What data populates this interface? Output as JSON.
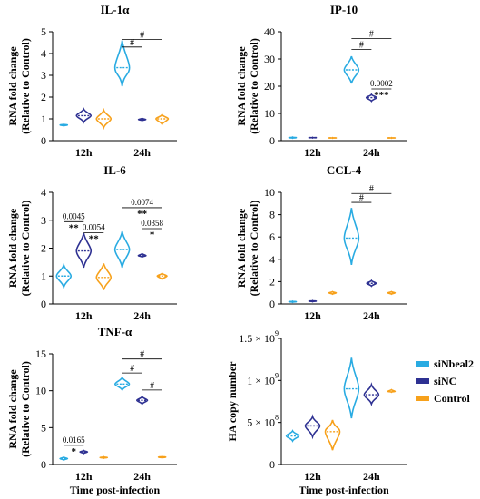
{
  "colors": {
    "siNbeal2": "#29abe2",
    "siNC": "#2e3192",
    "Control": "#f7a11b"
  },
  "legend": [
    {
      "name": "siNbeal2",
      "color": "#29abe2"
    },
    {
      "name": "siNC",
      "color": "#2e3192"
    },
    {
      "name": "Control",
      "color": "#f7a11b"
    }
  ],
  "chart_data": [
    {
      "type": "violin",
      "title": "IL-1α",
      "ylabel": "RNA fold change",
      "ylabel2": "(Relative to Control)",
      "xlabel": "",
      "ylim": [
        0,
        5
      ],
      "yticks": [
        "0",
        "1",
        "2",
        "3",
        "4",
        "5"
      ],
      "ytick_values": [
        0,
        1,
        2,
        3,
        4,
        5
      ],
      "categories": [
        "12h",
        "24h"
      ],
      "series": [
        {
          "name": "siNbeal2",
          "values": [
            [
              0.68,
              0.72,
              0.75
            ],
            [
              2.5,
              3.35,
              4.6
            ]
          ]
        },
        {
          "name": "siNC",
          "values": [
            [
              0.85,
              1.15,
              1.45
            ],
            [
              0.92,
              0.97,
              1.02
            ]
          ]
        },
        {
          "name": "Control",
          "values": [
            [
              0.6,
              1.0,
              1.4
            ],
            [
              0.75,
              1.0,
              1.2
            ]
          ]
        }
      ],
      "annotations": [
        {
          "text": "#",
          "group": 1,
          "from": 0,
          "to": 1,
          "y": 4.3
        },
        {
          "text": "#",
          "group": 1,
          "from": 0,
          "to": 2,
          "y": 4.65
        }
      ]
    },
    {
      "type": "violin",
      "title": "IP-10",
      "ylabel": "RNA fold change",
      "ylabel2": "(Relative to Control)",
      "xlabel": "",
      "ylim": [
        0,
        40
      ],
      "yticks": [
        "0",
        "10",
        "20",
        "30",
        "40"
      ],
      "ytick_values": [
        0,
        10,
        20,
        30,
        40
      ],
      "categories": [
        "12h",
        "24h"
      ],
      "series": [
        {
          "name": "siNbeal2",
          "values": [
            [
              0.9,
              1.1,
              1.3
            ],
            [
              21,
              26,
              31
            ]
          ]
        },
        {
          "name": "siNC",
          "values": [
            [
              1.0,
              1.1,
              1.2
            ],
            [
              14.5,
              15.8,
              17
            ]
          ]
        },
        {
          "name": "Control",
          "values": [
            [
              0.9,
              1.0,
              1.1
            ],
            [
              0.9,
              1.0,
              1.1
            ]
          ]
        }
      ],
      "annotations": [
        {
          "text": "#",
          "group": 1,
          "from": 0,
          "to": 1,
          "y": 33.5
        },
        {
          "text": "#",
          "group": 1,
          "from": 0,
          "to": 2,
          "y": 37.5
        },
        {
          "text": "***",
          "label": "0.0002",
          "group": 1,
          "from": 1,
          "to": 2,
          "y": 19
        }
      ]
    },
    {
      "type": "violin",
      "title": "IL-6",
      "ylabel": "RNA fold change",
      "ylabel2": "(Relative to Control)",
      "xlabel": "",
      "ylim": [
        0,
        4
      ],
      "yticks": [
        "0",
        "1",
        "2",
        "3",
        "4"
      ],
      "ytick_values": [
        0,
        1,
        2,
        3,
        4
      ],
      "categories": [
        "12h",
        "24h"
      ],
      "series": [
        {
          "name": "siNbeal2",
          "values": [
            [
              0.6,
              1.0,
              1.4
            ],
            [
              1.3,
              1.95,
              2.6
            ]
          ]
        },
        {
          "name": "siNC",
          "values": [
            [
              1.3,
              1.9,
              2.55
            ],
            [
              1.68,
              1.73,
              1.8
            ]
          ]
        },
        {
          "name": "Control",
          "values": [
            [
              0.5,
              0.95,
              1.45
            ],
            [
              0.88,
              1.0,
              1.1
            ]
          ]
        }
      ],
      "annotations": [
        {
          "text": "**",
          "label": "0.0045",
          "group": 0,
          "from": 0,
          "to": 1,
          "y": 2.95
        },
        {
          "text": "**",
          "label": "0.0054",
          "group": 0,
          "from": 1,
          "to": 2,
          "y": 2.55
        },
        {
          "text": "**",
          "label": "0.0074",
          "group": 1,
          "from": 0,
          "to": 2,
          "y": 3.45
        },
        {
          "text": "*",
          "label": "0.0358",
          "group": 1,
          "from": 1,
          "to": 2,
          "y": 2.7
        }
      ]
    },
    {
      "type": "violin",
      "title": "CCL-4",
      "ylabel": "RNA fold change",
      "ylabel2": "(Relative to Control)",
      "xlabel": "",
      "ylim": [
        0,
        10
      ],
      "yticks": [
        "0",
        "2",
        "4",
        "6",
        "8",
        "10"
      ],
      "ytick_values": [
        0,
        2,
        4,
        6,
        8,
        10
      ],
      "categories": [
        "12h",
        "24h"
      ],
      "series": [
        {
          "name": "siNbeal2",
          "values": [
            [
              0.15,
              0.2,
              0.25
            ],
            [
              3.5,
              5.9,
              8.6
            ]
          ]
        },
        {
          "name": "siNC",
          "values": [
            [
              0.2,
              0.25,
              0.3
            ],
            [
              1.6,
              1.85,
              2.1
            ]
          ]
        },
        {
          "name": "Control",
          "values": [
            [
              0.88,
              1.0,
              1.1
            ],
            [
              0.88,
              1.0,
              1.1
            ]
          ]
        }
      ],
      "annotations": [
        {
          "text": "#",
          "group": 1,
          "from": 0,
          "to": 1,
          "y": 9.1
        },
        {
          "text": "#",
          "group": 1,
          "from": 0,
          "to": 2,
          "y": 9.9
        }
      ]
    },
    {
      "type": "violin",
      "title": "TNF-α",
      "ylabel": "RNA fold change",
      "ylabel2": "(Relative to Control)",
      "xlabel": "Time post-infection",
      "ylim": [
        0,
        15
      ],
      "yticks": [
        "0",
        "5",
        "10",
        "15"
      ],
      "ytick_values": [
        0,
        5,
        10,
        15
      ],
      "categories": [
        "12h",
        "24h"
      ],
      "series": [
        {
          "name": "siNbeal2",
          "values": [
            [
              0.6,
              0.8,
              1.0
            ],
            [
              10.1,
              10.9,
              11.8
            ]
          ]
        },
        {
          "name": "siNC",
          "values": [
            [
              1.5,
              1.7,
              1.9
            ],
            [
              8.2,
              8.7,
              9.2
            ]
          ]
        },
        {
          "name": "Control",
          "values": [
            [
              0.85,
              0.95,
              1.05
            ],
            [
              0.9,
              1.0,
              1.1
            ]
          ]
        }
      ],
      "annotations": [
        {
          "text": "*",
          "label": "0.0165",
          "group": 0,
          "from": 0,
          "to": 1,
          "y": 2.6
        },
        {
          "text": "#",
          "group": 1,
          "from": 0,
          "to": 1,
          "y": 12.4
        },
        {
          "text": "#",
          "group": 1,
          "from": 0,
          "to": 2,
          "y": 14.3
        },
        {
          "text": "#",
          "group": 1,
          "from": 1,
          "to": 2,
          "y": 10.1
        }
      ]
    },
    {
      "type": "violin",
      "title": "",
      "ylabel": "HA copy number",
      "ylabel2": "",
      "xlabel": "Time post-infection",
      "ylim": [
        0,
        1500000000
      ],
      "yticks": [
        "0",
        "5 × 10",
        "1 × 10",
        "1.5 × 10"
      ],
      "ytick_exponents": [
        "",
        "8",
        "9",
        "9"
      ],
      "ytick_values": [
        0,
        500000000,
        1000000000,
        1500000000
      ],
      "categories": [
        "12h",
        "24h"
      ],
      "series": [
        {
          "name": "siNbeal2",
          "values": [
            [
              280000000,
              340000000,
              400000000
            ],
            [
              550000000,
              900000000,
              1270000000
            ]
          ]
        },
        {
          "name": "siNC",
          "values": [
            [
              330000000,
              460000000,
              570000000
            ],
            [
              720000000,
              830000000,
              950000000
            ]
          ]
        },
        {
          "name": "Control",
          "values": [
            [
              170000000,
              390000000,
              530000000
            ],
            [
              860000000,
              870000000,
              890000000
            ]
          ]
        }
      ],
      "annotations": []
    }
  ]
}
